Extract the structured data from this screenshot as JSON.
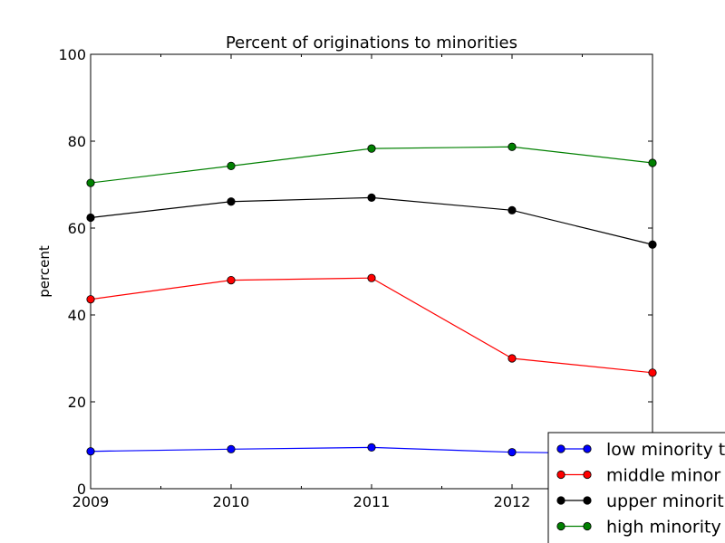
{
  "chart_data": {
    "type": "line",
    "title": "Percent of originations to minorities",
    "xlabel": "",
    "ylabel": "percent",
    "x": [
      2009,
      2010,
      2011,
      2012,
      2013
    ],
    "x_tick_labels": [
      "2009",
      "2010",
      "2011",
      "2012"
    ],
    "xlim": [
      2009,
      2013
    ],
    "y_ticks": [
      0,
      20,
      40,
      60,
      80,
      100
    ],
    "y_tick_labels": [
      "0",
      "20",
      "40",
      "60",
      "80",
      "100"
    ],
    "ylim": [
      0,
      100
    ],
    "grid": false,
    "legend_position": "bottom-right",
    "series": [
      {
        "name": "low minority tract",
        "legend_label": "low minority t",
        "color": "#0000ff",
        "values": [
          8.6,
          9.1,
          9.5,
          8.4,
          8.0
        ]
      },
      {
        "name": "middle minority tract",
        "legend_label": "middle minor",
        "color": "#ff0000",
        "values": [
          43.6,
          48.0,
          48.5,
          30.0,
          26.7
        ]
      },
      {
        "name": "upper minority tract",
        "legend_label": "upper minorit",
        "color": "#000000",
        "values": [
          62.4,
          66.1,
          67.0,
          64.1,
          56.2
        ]
      },
      {
        "name": "high minority tract",
        "legend_label": "high minority",
        "color": "#008000",
        "values": [
          70.4,
          74.3,
          78.3,
          78.7,
          75.0
        ]
      }
    ]
  }
}
